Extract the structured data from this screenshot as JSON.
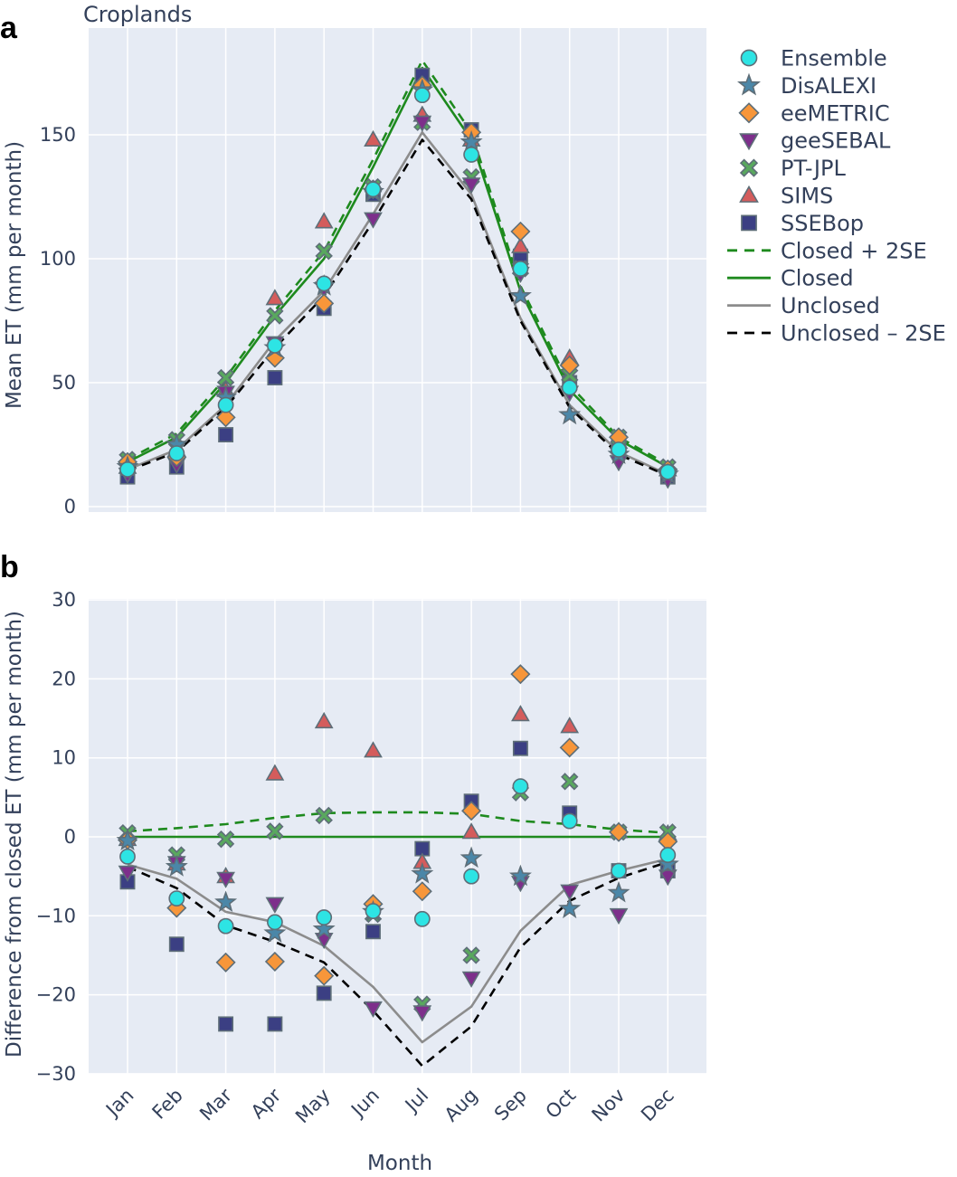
{
  "colors": {
    "background": "#e6ebf4",
    "grid": "#ffffff",
    "text": "#33405a",
    "Ensemble": "#2de4e4",
    "DisALEXI": "#4b87a8",
    "eeMETRIC": "#f7963a",
    "geeSEBAL": "#7d2f8b",
    "PT-JPL": "#59a85e",
    "SIMS": "#d45c5c",
    "SSEBop": "#3b3f83",
    "Closed": "#1e8a1e",
    "Unclosed": "#8c8c8c",
    "UnclosedMinus": "#000000",
    "marker_edge": "#5e6e78"
  },
  "legend": [
    {
      "name": "Ensemble",
      "kind": "marker",
      "marker": "circle"
    },
    {
      "name": "DisALEXI",
      "kind": "marker",
      "marker": "star"
    },
    {
      "name": "eeMETRIC",
      "kind": "marker",
      "marker": "diamond"
    },
    {
      "name": "geeSEBAL",
      "kind": "marker",
      "marker": "tri-down"
    },
    {
      "name": "PT-JPL",
      "kind": "marker",
      "marker": "x"
    },
    {
      "name": "SIMS",
      "kind": "marker",
      "marker": "tri-up"
    },
    {
      "name": "SSEBop",
      "kind": "marker",
      "marker": "square"
    },
    {
      "name": "Closed + 2SE",
      "kind": "line",
      "style": "dashed",
      "colorKey": "Closed"
    },
    {
      "name": "Closed",
      "kind": "line",
      "style": "solid",
      "colorKey": "Closed"
    },
    {
      "name": "Unclosed",
      "kind": "line",
      "style": "solid",
      "colorKey": "Unclosed"
    },
    {
      "name": "Unclosed – 2SE",
      "kind": "line",
      "style": "dashed",
      "colorKey": "UnclosedMinus"
    }
  ],
  "chart_data": [
    {
      "panel": "a",
      "type": "scatter",
      "title": "Croplands",
      "xlabel": "",
      "ylabel": "Mean ET (mm per month)",
      "ylim": [
        -3,
        182
      ],
      "yticks": [
        0,
        50,
        100,
        150
      ],
      "grid": true,
      "legend_position": "right",
      "categories": [
        "Jan",
        "Feb",
        "Mar",
        "Apr",
        "May",
        "Jun",
        "Jul",
        "Aug",
        "Sep",
        "Oct",
        "Nov",
        "Dec"
      ],
      "series": [
        {
          "name": "Ensemble",
          "values": [
            15,
            21.5,
            41,
            65,
            90,
            128,
            166,
            142,
            96,
            48,
            23,
            14
          ]
        },
        {
          "name": "DisALEXI",
          "values": [
            16,
            25,
            44,
            64,
            89,
            127,
            168,
            147,
            85,
            37,
            21,
            13
          ]
        },
        {
          "name": "eeMETRIC",
          "values": [
            18,
            20,
            36,
            60,
            82,
            128,
            170,
            151,
            111,
            57,
            28,
            15
          ]
        },
        {
          "name": "geeSEBAL",
          "values": [
            13,
            17,
            46,
            66,
            88,
            116,
            155,
            130,
            94,
            46,
            18,
            11
          ]
        },
        {
          "name": "PT-JPL",
          "values": [
            19,
            27,
            52,
            77,
            103,
            129,
            155,
            133,
            96,
            53,
            28,
            16
          ]
        },
        {
          "name": "SIMS",
          "values": [
            16,
            23,
            47,
            84,
            115,
            148,
            158,
            148,
            105,
            60,
            26,
            15
          ]
        },
        {
          "name": "SSEBop",
          "values": [
            12,
            16,
            29,
            52,
            80,
            126,
            174,
            152,
            101,
            50,
            24,
            12
          ]
        },
        {
          "name": "Closed + 2SE",
          "values": [
            19,
            29.5,
            52,
            79,
            103,
            140,
            180,
            151,
            89,
            49,
            28,
            17
          ]
        },
        {
          "name": "Closed",
          "values": [
            18,
            28,
            50,
            77,
            100,
            137,
            177,
            148,
            87,
            47,
            27,
            16
          ]
        },
        {
          "name": "Unclosed",
          "values": [
            15,
            23,
            41,
            67,
            87,
            118,
            151,
            126,
            76,
            41,
            22,
            13
          ]
        },
        {
          "name": "Unclosed – 2SE",
          "values": [
            14.5,
            22,
            40,
            64,
            85,
            115,
            148,
            124,
            75,
            40,
            21,
            12.5
          ]
        }
      ]
    },
    {
      "panel": "b",
      "type": "scatter",
      "title": "",
      "xlabel": "Month",
      "ylabel": "Difference from closed ET (mm per month)",
      "ylim": [
        -30,
        30
      ],
      "yticks": [
        -30,
        -20,
        -10,
        0,
        10,
        20,
        30
      ],
      "grid": true,
      "categories": [
        "Jan",
        "Feb",
        "Mar",
        "Apr",
        "May",
        "Jun",
        "Jul",
        "Aug",
        "Sep",
        "Oct",
        "Nov",
        "Dec"
      ],
      "series": [
        {
          "name": "Ensemble",
          "values": [
            -2.5,
            -7.8,
            -11.3,
            -10.8,
            -10.2,
            -9.4,
            -10.4,
            -5,
            6.4,
            2,
            -4.3,
            -2.3
          ]
        },
        {
          "name": "DisALEXI",
          "values": [
            -0.5,
            -3.8,
            -8.3,
            -12.2,
            -11.7,
            -9.5,
            -4.7,
            -2.7,
            -5,
            -9.1,
            -7.1,
            -3.5
          ]
        },
        {
          "name": "eeMETRIC",
          "values": [
            -0.4,
            -9,
            -15.9,
            -15.8,
            -17.6,
            -8.5,
            -6.9,
            3.3,
            20.6,
            11.3,
            0.6,
            -0.6
          ]
        },
        {
          "name": "geeSEBAL",
          "values": [
            -4.5,
            -3.3,
            -5.3,
            -8.5,
            -13,
            -21.7,
            -22.2,
            -17.9,
            -5.8,
            -6.9,
            -9.9,
            -5
          ]
        },
        {
          "name": "PT-JPL",
          "values": [
            0.5,
            -2.3,
            -0.3,
            0.7,
            2.7,
            -9.8,
            -21.2,
            -15,
            5.6,
            7,
            0.6,
            0.6
          ]
        },
        {
          "name": "SIMS",
          "values": [
            -0.3,
            -3.4,
            -5,
            8,
            14.6,
            10.9,
            -3.2,
            0.6,
            15.5,
            14,
            0.7,
            0.4
          ]
        },
        {
          "name": "SSEBop",
          "values": [
            -5.7,
            -13.6,
            -23.7,
            -23.7,
            -19.8,
            -12,
            -1.5,
            4.5,
            11.2,
            3,
            -4.3,
            -4.3
          ]
        },
        {
          "name": "Closed + 2SE",
          "values": [
            0.7,
            1.1,
            1.6,
            2.4,
            3.0,
            3.1,
            3.1,
            2.9,
            2.0,
            1.6,
            0.9,
            0.5
          ]
        },
        {
          "name": "Closed",
          "values": [
            0,
            0,
            0,
            0,
            0,
            0,
            0,
            0,
            0,
            0,
            0,
            0
          ]
        },
        {
          "name": "Unclosed",
          "values": [
            -3.5,
            -5.3,
            -9.5,
            -10.8,
            -13.8,
            -19,
            -26,
            -21.5,
            -11.9,
            -6.1,
            -4.3,
            -2.8
          ]
        },
        {
          "name": "Unclosed – 2SE",
          "values": [
            -3.8,
            -6.5,
            -11.2,
            -13.3,
            -15.9,
            -22,
            -29,
            -24,
            -14,
            -8.1,
            -5.2,
            -3.2
          ]
        }
      ]
    }
  ]
}
